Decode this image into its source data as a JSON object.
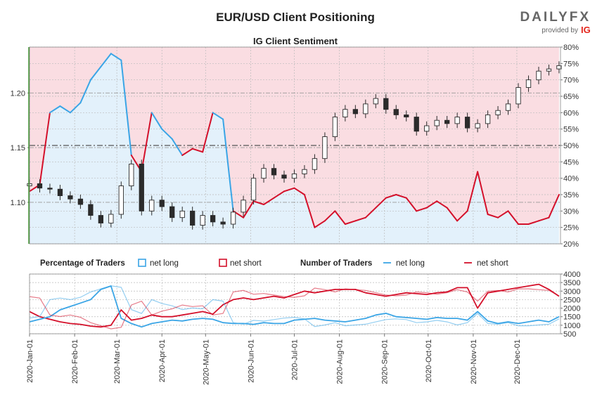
{
  "header": {
    "title": "EUR/USD Client Positioning",
    "subtitle": "IG Client Sentiment"
  },
  "brand": {
    "name": "DAILYFX",
    "provided_by": "provided by",
    "ig": "IG",
    "color_ig": "#e3241b"
  },
  "colors": {
    "net_long": "#3aa5e6",
    "net_short": "#d4102a",
    "long_fill": "#e3f1fb",
    "short_fill": "#fadde2",
    "candle": "#2b2b2b"
  },
  "legend": {
    "percentage_heading": "Percentage of Traders",
    "number_heading": "Number of Traders",
    "net_long": "net long",
    "net_short": "net short"
  },
  "chart_data": [
    {
      "type": "line",
      "name": "price_and_sentiment",
      "ylim": [
        1.062,
        1.242
      ],
      "y_ticks": [
        1.1,
        1.15,
        1.2
      ],
      "y_tick_labels": [
        "1.10",
        "1.15",
        "1.20"
      ],
      "y2lim": [
        20,
        80
      ],
      "y2_ticks": [
        20,
        25,
        30,
        35,
        40,
        45,
        50,
        55,
        60,
        65,
        70,
        75,
        80
      ],
      "y2_tick_labels": [
        "20%",
        "25%",
        "30%",
        "35%",
        "40%",
        "45%",
        "50%",
        "55%",
        "60%",
        "65%",
        "70%",
        "75%",
        "80%"
      ],
      "x_dates": [
        "2020-01-01",
        "2020-01-08",
        "2020-01-15",
        "2020-01-22",
        "2020-01-29",
        "2020-02-05",
        "2020-02-12",
        "2020-02-19",
        "2020-02-26",
        "2020-03-04",
        "2020-03-11",
        "2020-03-18",
        "2020-03-25",
        "2020-04-01",
        "2020-04-08",
        "2020-04-15",
        "2020-04-22",
        "2020-04-29",
        "2020-05-06",
        "2020-05-13",
        "2020-05-20",
        "2020-05-27",
        "2020-06-03",
        "2020-06-10",
        "2020-06-17",
        "2020-06-24",
        "2020-07-01",
        "2020-07-08",
        "2020-07-15",
        "2020-07-22",
        "2020-07-29",
        "2020-08-05",
        "2020-08-12",
        "2020-08-19",
        "2020-08-26",
        "2020-09-02",
        "2020-09-09",
        "2020-09-16",
        "2020-09-23",
        "2020-09-30",
        "2020-10-07",
        "2020-10-14",
        "2020-10-21",
        "2020-10-28",
        "2020-11-04",
        "2020-11-11",
        "2020-11-18",
        "2020-11-25",
        "2020-12-02",
        "2020-12-09",
        "2020-12-16",
        "2020-12-23",
        "2020-12-30"
      ],
      "price_close": [
        1.117,
        1.113,
        1.112,
        1.106,
        1.103,
        1.098,
        1.088,
        1.081,
        1.089,
        1.115,
        1.135,
        1.092,
        1.102,
        1.096,
        1.086,
        1.092,
        1.079,
        1.088,
        1.082,
        1.08,
        1.091,
        1.102,
        1.122,
        1.131,
        1.125,
        1.122,
        1.126,
        1.13,
        1.14,
        1.16,
        1.178,
        1.185,
        1.181,
        1.19,
        1.195,
        1.185,
        1.18,
        1.178,
        1.165,
        1.17,
        1.175,
        1.172,
        1.178,
        1.168,
        1.172,
        1.18,
        1.184,
        1.19,
        1.205,
        1.212,
        1.22,
        1.222,
        1.225
      ],
      "net_long_pct": [
        36,
        38,
        60,
        62,
        60,
        63,
        70,
        74,
        78,
        76,
        47,
        42,
        60,
        55,
        52,
        47,
        49,
        48,
        60,
        58,
        30,
        28,
        33,
        32,
        34,
        36,
        37,
        35,
        25,
        27,
        30,
        26,
        27,
        28,
        31,
        34,
        35,
        34,
        30,
        31,
        33,
        31,
        27,
        30,
        42,
        29,
        28,
        30,
        26,
        26,
        27,
        28,
        35
      ],
      "series": [
        {
          "name": "net long",
          "key": "net_long_pct"
        },
        {
          "name": "net short",
          "key": "net_short_pct"
        }
      ]
    },
    {
      "type": "line",
      "name": "number_of_traders",
      "ylim": [
        500,
        4000
      ],
      "y_ticks": [
        500,
        1000,
        1500,
        2000,
        2500,
        3000,
        3500,
        4000
      ],
      "y_tick_labels": [
        "500",
        "1000",
        "1500",
        "2000",
        "2500",
        "3000",
        "3500",
        "4000"
      ],
      "net_long_count": [
        1200,
        1350,
        1500,
        1900,
        2100,
        2300,
        2500,
        3100,
        3300,
        1400,
        1100,
        900,
        1100,
        1200,
        1300,
        1250,
        1350,
        1400,
        1350,
        1150,
        1100,
        1100,
        1050,
        1150,
        1100,
        1100,
        1300,
        1350,
        1400,
        1300,
        1250,
        1200,
        1300,
        1400,
        1600,
        1700,
        1500,
        1450,
        1400,
        1350,
        1450,
        1400,
        1400,
        1300,
        1800,
        1250,
        1100,
        1200,
        1100,
        1200,
        1300,
        1200,
        1500
      ],
      "net_short_count": [
        1800,
        1500,
        1350,
        1200,
        1100,
        1050,
        950,
        900,
        1000,
        1900,
        1300,
        1400,
        1600,
        1500,
        1500,
        1600,
        1700,
        1800,
        1650,
        2200,
        2500,
        2600,
        2500,
        2600,
        2700,
        2600,
        2800,
        3000,
        2900,
        3000,
        3100,
        3100,
        3100,
        2900,
        2800,
        2700,
        2800,
        2900,
        2850,
        2800,
        2900,
        2950,
        3200,
        3200,
        2000,
        2900,
        3000,
        3100,
        3200,
        3300,
        3400,
        3100,
        2700
      ],
      "series": [
        {
          "name": "net long",
          "key": "net_long_count"
        },
        {
          "name": "net short",
          "key": "net_short_count"
        }
      ]
    }
  ],
  "x_axis": {
    "ticks": [
      "2020-01-01",
      "2020-02-01",
      "2020-03-01",
      "2020-04-01",
      "2020-05-01",
      "2020-06-01",
      "2020-07-01",
      "2020-08-01",
      "2020-09-01",
      "2020-10-01",
      "2020-11-01",
      "2020-12-01"
    ],
    "labels": [
      "2020-Jan-01",
      "2020-Feb-01",
      "2020-Mar-01",
      "2020-Apr-01",
      "2020-May-01",
      "2020-Jun-01",
      "2020-Jul-01",
      "2020-Aug-01",
      "2020-Sep-01",
      "2020-Oct-01",
      "2020-Nov-01",
      "2020-Dec-01"
    ]
  }
}
